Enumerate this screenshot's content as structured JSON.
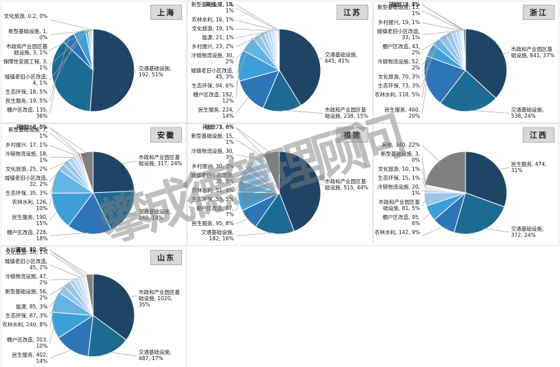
{
  "watermark": "攀成德管理顾问",
  "chart_data": [
    {
      "type": "pie",
      "region": "上海",
      "legend_position": "outside-labels",
      "label_format": "name, value, percent",
      "slices": [
        {
          "name": "交通基础设施",
          "value": 192,
          "pct": "51%",
          "color": "#1E4566"
        },
        {
          "name": "棚户区改造",
          "value": 135,
          "pct": "36%",
          "color": "#1C6B93"
        },
        {
          "name": "民生服务",
          "value": 19,
          "pct": "5%",
          "color": "#2E75B6"
        },
        {
          "name": "生态环保",
          "value": 18,
          "pct": "5%",
          "color": "#3E9FD8"
        },
        {
          "name": "城镇老旧小区改造",
          "value": 4,
          "pct": "1%",
          "color": "#63B3E4"
        },
        {
          "name": "保障性安居工程",
          "value": 3,
          "pct": "1%",
          "color": "#9DC3E6"
        },
        {
          "name": "市政和产业园区基础设施",
          "value": 3,
          "pct": "1%",
          "color": "#BDD7EE"
        },
        {
          "name": "新型基础设施",
          "value": 1,
          "pct": "0%",
          "color": "#CEE2F5"
        },
        {
          "name": "文化旅游",
          "value": 0.2,
          "pct": "0%",
          "color": "#DEEBF7"
        }
      ]
    },
    {
      "type": "pie",
      "region": "江苏",
      "legend_position": "outside-labels",
      "label_format": "name, value, percent",
      "slices": [
        {
          "name": "交通基础设施",
          "value": 645,
          "pct": "41%",
          "color": "#1E4566"
        },
        {
          "name": "市政和产业园区基础设施",
          "value": 238,
          "pct": "15%",
          "color": "#1C6B93"
        },
        {
          "name": "民生服务",
          "value": 224,
          "pct": "14%",
          "color": "#2E75B6"
        },
        {
          "name": "棚户区改造",
          "value": 192,
          "pct": "12%",
          "color": "#3E9FD8"
        },
        {
          "name": "生态环保",
          "value": 94,
          "pct": "6%",
          "color": "#63B3E4"
        },
        {
          "name": "城镇老旧小区改造",
          "value": 45,
          "pct": "3%",
          "color": "#8FC4EA"
        },
        {
          "name": "冷链物流设施",
          "value": 30,
          "pct": "2%",
          "color": "#9DC3E6"
        },
        {
          "name": "乡村振兴",
          "value": 23,
          "pct": "2%",
          "color": "#AFD4EF"
        },
        {
          "name": "能源",
          "value": 21,
          "pct": "1%",
          "color": "#BDD7EE"
        },
        {
          "name": "文化旅游",
          "value": 19,
          "pct": "1%",
          "color": "#CEE2F5"
        },
        {
          "name": "农林水利",
          "value": 16,
          "pct": "1%",
          "color": "#DEEBF7"
        },
        {
          "name": "新型基础设施",
          "value": 10,
          "pct": "1%",
          "color": "#E8F1FA"
        },
        {
          "name": "其他",
          "value": 7,
          "pct": "1%",
          "color": "#7F7F7F"
        }
      ]
    },
    {
      "type": "pie",
      "region": "浙江",
      "legend_position": "outside-labels",
      "label_format": "name, value, percent",
      "slices": [
        {
          "name": "市政和产业园区基础设施",
          "value": 841,
          "pct": "37%",
          "color": "#1E4566"
        },
        {
          "name": "交通基础设施",
          "value": 538,
          "pct": "24%",
          "color": "#1C6B93"
        },
        {
          "name": "民生服务",
          "value": 460,
          "pct": "20%",
          "color": "#2E75B6"
        },
        {
          "name": "农林水利",
          "value": 118,
          "pct": "5%",
          "color": "#3E9FD8"
        },
        {
          "name": "生态环保",
          "value": 73,
          "pct": "3%",
          "color": "#63B3E4"
        },
        {
          "name": "文化旅游",
          "value": 70,
          "pct": "3%",
          "color": "#8FC4EA"
        },
        {
          "name": "冷链物流设施",
          "value": 52,
          "pct": "2%",
          "color": "#9DC3E6"
        },
        {
          "name": "棚户区改造",
          "value": 43,
          "pct": "2%",
          "color": "#AFD4EF"
        },
        {
          "name": "城镇老旧小区改造",
          "value": 33,
          "pct": "1%",
          "color": "#BDD7EE"
        },
        {
          "name": "乡村振兴",
          "value": 19,
          "pct": "1%",
          "color": "#CEE2F5"
        },
        {
          "name": "新型基础设施",
          "value": 13,
          "pct": "1%",
          "color": "#DEEBF7"
        },
        {
          "name": "能源",
          "value": 3,
          "pct": "0%",
          "color": "#E8F1FA"
        },
        {
          "name": "其他",
          "value": 19,
          "pct": "1%",
          "color": "#7F7F7F"
        }
      ]
    },
    {
      "type": "pie",
      "region": "安徽",
      "legend_position": "outside-labels",
      "label_format": "name, value, percent",
      "slices": [
        {
          "name": "市政和产业园区基础设施",
          "value": 317,
          "pct": "24%",
          "color": "#1E4566"
        },
        {
          "name": "交通基础设施",
          "value": 240,
          "pct": "18%",
          "color": "#1C6B93"
        },
        {
          "name": "棚户区改造",
          "value": 228,
          "pct": "18%",
          "color": "#2E75B6"
        },
        {
          "name": "民生服务",
          "value": 190,
          "pct": "15%",
          "color": "#3E9FD8"
        },
        {
          "name": "农林水利",
          "value": 126,
          "pct": "10%",
          "color": "#63B3E4"
        },
        {
          "name": "生态环保",
          "value": 35,
          "pct": "3%",
          "color": "#8FC4EA"
        },
        {
          "name": "城镇老旧小区改造",
          "value": 32,
          "pct": "2%",
          "color": "#9DC3E6"
        },
        {
          "name": "文化旅游",
          "value": 25,
          "pct": "2%",
          "color": "#AFD4EF"
        },
        {
          "name": "冷链物流设施",
          "value": 18,
          "pct": "1%",
          "color": "#BDD7EE"
        },
        {
          "name": "乡村振兴",
          "value": 17,
          "pct": "1%",
          "color": "#CEE2F5"
        },
        {
          "name": "新型基础设施",
          "value": 7,
          "pct": "1%",
          "color": "#6E2C4D"
        },
        {
          "name": "能源",
          "value": 2,
          "pct": "0%",
          "color": "#D9D9D9"
        },
        {
          "name": "其他",
          "value": 66,
          "pct": "5%",
          "color": "#7F7F7F"
        }
      ]
    },
    {
      "type": "pie",
      "region": "福建",
      "legend_position": "outside-labels",
      "label_format": "name, value, percent",
      "slices": [
        {
          "name": "市政和产业园区基础设施",
          "value": 515,
          "pct": "44%",
          "color": "#1E4566"
        },
        {
          "name": "交通基础设施",
          "value": 182,
          "pct": "16%",
          "color": "#1C6B93"
        },
        {
          "name": "民生服务",
          "value": 95,
          "pct": "8%",
          "color": "#2E75B6"
        },
        {
          "name": "棚户区改造",
          "value": 87,
          "pct": "7%",
          "color": "#3E9FD8"
        },
        {
          "name": "生态环保",
          "value": 53,
          "pct": "5%",
          "color": "#63B3E4"
        },
        {
          "name": "农林水利",
          "value": 51,
          "pct": "4%",
          "color": "#8FC4EA"
        },
        {
          "name": "城镇老旧小区改造",
          "value": 35,
          "pct": "3%",
          "color": "#9DC3E6"
        },
        {
          "name": "乡村振兴",
          "value": 30,
          "pct": "3%",
          "color": "#BDD7EE"
        },
        {
          "name": "冷链物流设施",
          "value": 30,
          "pct": "3%",
          "color": "#CEE2F5"
        },
        {
          "name": "新型基础设施",
          "value": 15,
          "pct": "1%",
          "color": "#DEEBF7"
        },
        {
          "name": "能源",
          "value": 1,
          "pct": "0%",
          "color": "#E8F1FA"
        },
        {
          "name": "其他",
          "value": 73,
          "pct": "6%",
          "color": "#7F7F7F"
        }
      ]
    },
    {
      "type": "pie",
      "region": "江西",
      "legend_position": "outside-labels",
      "label_format": "name, value, percent",
      "slices": [
        {
          "name": "民生服务",
          "value": 474,
          "pct": "31%",
          "color": "#1E4566"
        },
        {
          "name": "交通基础设施",
          "value": 372,
          "pct": "24%",
          "color": "#1C6B93"
        },
        {
          "name": "农林水利",
          "value": 142,
          "pct": "9%",
          "color": "#2E75B6"
        },
        {
          "name": "棚户区改造",
          "value": 95,
          "pct": "6%",
          "color": "#3E9FD8"
        },
        {
          "name": "市政和产业园区基础设施",
          "value": 81,
          "pct": "5%",
          "color": "#9DC3E6"
        },
        {
          "name": "冷链物流设施",
          "value": 20,
          "pct": "1%",
          "color": "#BDD7EE"
        },
        {
          "name": "生态环保",
          "value": 15,
          "pct": "1%",
          "color": "#CEE2F5"
        },
        {
          "name": "文化旅游",
          "value": 10,
          "pct": "1%",
          "color": "#DEEBF7"
        },
        {
          "name": "新型基础设施",
          "value": 3,
          "pct": "0%",
          "color": "#E8F1FA"
        },
        {
          "name": "其他",
          "value": 340,
          "pct": "22%",
          "color": "#808080"
        }
      ]
    },
    {
      "type": "pie",
      "region": "山东",
      "legend_position": "outside-labels",
      "label_format": "name, value, percent",
      "slices": [
        {
          "name": "市政和产业园区基础设施",
          "value": 1020,
          "pct": "35%",
          "color": "#1E4566"
        },
        {
          "name": "交通基础设施",
          "value": 487,
          "pct": "17%",
          "color": "#1C6B93"
        },
        {
          "name": "民生服务",
          "value": 402,
          "pct": "14%",
          "color": "#2E75B6"
        },
        {
          "name": "棚户区改造",
          "value": 303,
          "pct": "10%",
          "color": "#3E9FD8"
        },
        {
          "name": "农林水利",
          "value": 240,
          "pct": "8%",
          "color": "#63B3E4"
        },
        {
          "name": "生态环保",
          "value": 87,
          "pct": "3%",
          "color": "#8FC4EA"
        },
        {
          "name": "能源",
          "value": 85,
          "pct": "3%",
          "color": "#9DC3E6"
        },
        {
          "name": "新型基础设施",
          "value": 56,
          "pct": "2%",
          "color": "#AFD4EF"
        },
        {
          "name": "冷链物流设施",
          "value": 47,
          "pct": "2%",
          "color": "#BDD7EE"
        },
        {
          "name": "城镇老旧小区改造",
          "value": 45,
          "pct": "2%",
          "color": "#CEE2F5"
        },
        {
          "name": "文化旅游",
          "value": 38,
          "pct": "1%",
          "color": "#DEEBF7"
        },
        {
          "name": "乡村振兴",
          "value": 12,
          "pct": "0%",
          "color": "#E8F1FA"
        },
        {
          "name": "其他",
          "value": 80,
          "pct": "3%",
          "color": "#7F7F7F"
        }
      ]
    }
  ]
}
